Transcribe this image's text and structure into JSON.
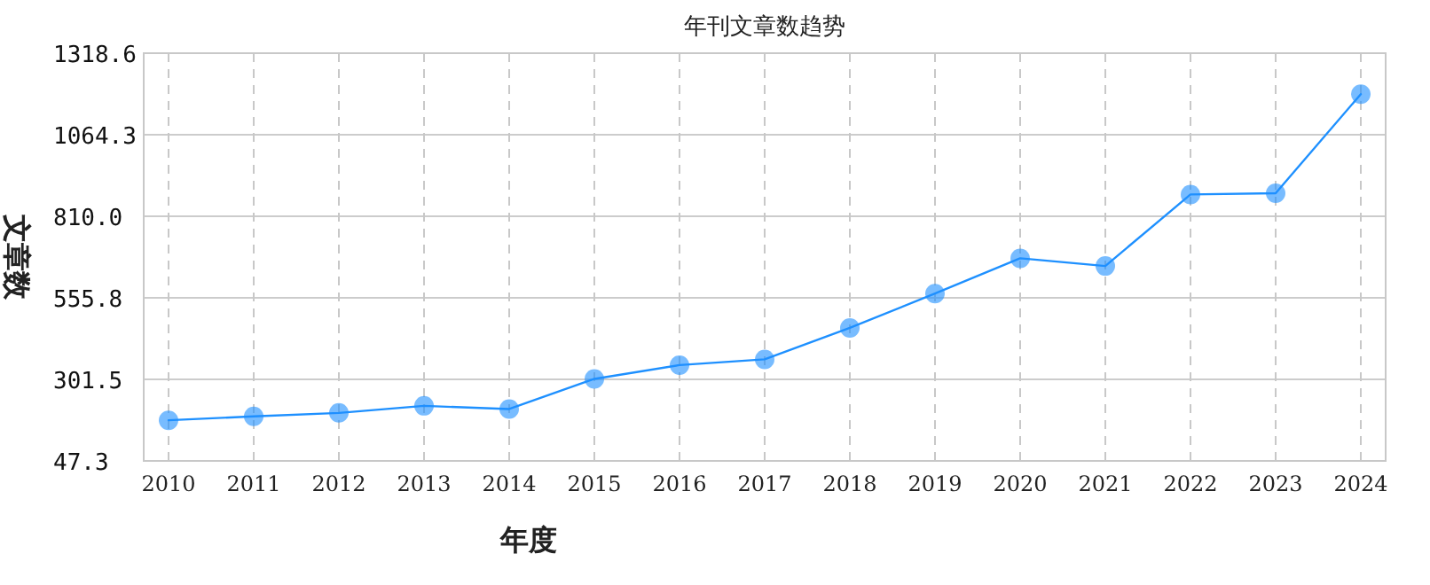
{
  "chart_data": {
    "type": "line",
    "title": "年刊文章数趋势",
    "xlabel": "年度",
    "ylabel": "文章数",
    "categories": [
      "2010",
      "2011",
      "2012",
      "2013",
      "2014",
      "2015",
      "2016",
      "2017",
      "2018",
      "2019",
      "2020",
      "2021",
      "2022",
      "2023",
      "2024"
    ],
    "series": [
      {
        "color": "#1e90ff",
        "values": [
          174,
          186,
          197,
          219,
          209,
          303,
          346,
          364,
          462,
          569,
          679,
          655,
          878,
          882,
          1191
        ]
      }
    ],
    "ylim": [
      47.3,
      1318.6
    ],
    "yticks": [
      47.3,
      301.5,
      555.8,
      {
        "value": 810,
        "label": "810.0"
      },
      1064.3,
      1318.6
    ],
    "grid": true,
    "marker": "circle",
    "line_style": "solid"
  }
}
